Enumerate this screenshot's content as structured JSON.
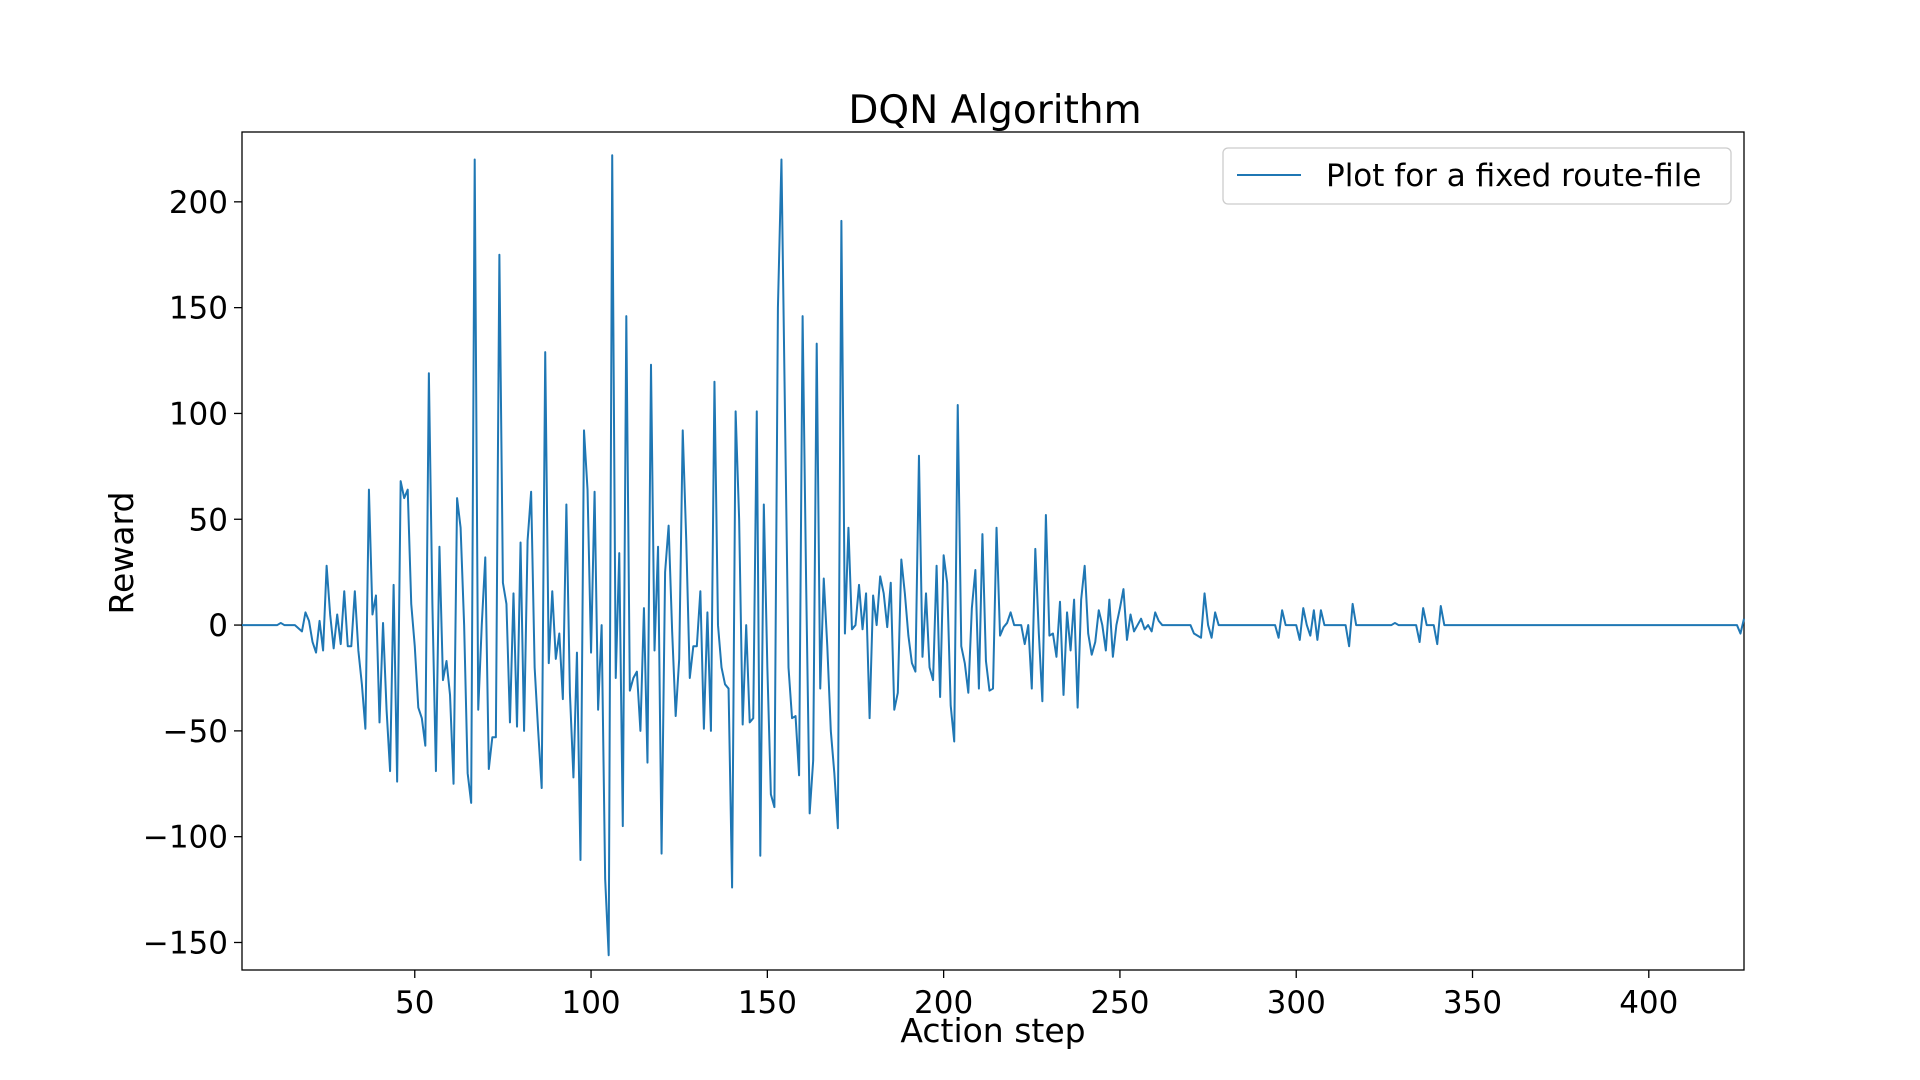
{
  "chart_data": {
    "type": "line",
    "title": "DQN Algorithm",
    "xlabel": "Action step",
    "ylabel": "Reward",
    "xlim": [
      1,
      427
    ],
    "ylim": [
      -163,
      233
    ],
    "xticks": [
      50,
      100,
      150,
      200,
      250,
      300,
      350,
      400
    ],
    "yticks": [
      -150,
      -100,
      -50,
      0,
      50,
      100,
      150,
      200
    ],
    "grid": false,
    "legend_position": "top-right",
    "series_color": "#1f77b4",
    "series": [
      {
        "name": "Plot for a fixed route-file",
        "points": [
          [
            1,
            0
          ],
          [
            11,
            0
          ],
          [
            12,
            1
          ],
          [
            13,
            0
          ],
          [
            16,
            0
          ],
          [
            18,
            -3
          ],
          [
            19,
            6
          ],
          [
            20,
            2
          ],
          [
            21,
            -8
          ],
          [
            22,
            -13
          ],
          [
            23,
            2
          ],
          [
            24,
            -12
          ],
          [
            25,
            28
          ],
          [
            26,
            5
          ],
          [
            27,
            -11
          ],
          [
            28,
            5
          ],
          [
            29,
            -9
          ],
          [
            30,
            16
          ],
          [
            31,
            -10
          ],
          [
            32,
            -10
          ],
          [
            33,
            16
          ],
          [
            34,
            -12
          ],
          [
            35,
            -28
          ],
          [
            36,
            -49
          ],
          [
            37,
            64
          ],
          [
            38,
            5
          ],
          [
            39,
            14
          ],
          [
            40,
            -46
          ],
          [
            41,
            1
          ],
          [
            42,
            -40
          ],
          [
            43,
            -69
          ],
          [
            44,
            19
          ],
          [
            45,
            -74
          ],
          [
            46,
            68
          ],
          [
            47,
            60
          ],
          [
            48,
            64
          ],
          [
            49,
            10
          ],
          [
            50,
            -10
          ],
          [
            51,
            -39
          ],
          [
            52,
            -44
          ],
          [
            53,
            -57
          ],
          [
            54,
            119
          ],
          [
            55,
            10
          ],
          [
            56,
            -69
          ],
          [
            57,
            37
          ],
          [
            58,
            -26
          ],
          [
            59,
            -17
          ],
          [
            60,
            -33
          ],
          [
            61,
            -75
          ],
          [
            62,
            60
          ],
          [
            63,
            46
          ],
          [
            64,
            0
          ],
          [
            65,
            -70
          ],
          [
            66,
            -84
          ],
          [
            67,
            220
          ],
          [
            68,
            -40
          ],
          [
            69,
            0
          ],
          [
            70,
            32
          ],
          [
            71,
            -68
          ],
          [
            72,
            -53
          ],
          [
            73,
            -53
          ],
          [
            74,
            175
          ],
          [
            75,
            20
          ],
          [
            76,
            10
          ],
          [
            77,
            -46
          ],
          [
            78,
            15
          ],
          [
            79,
            -48
          ],
          [
            80,
            39
          ],
          [
            81,
            -50
          ],
          [
            82,
            40
          ],
          [
            83,
            63
          ],
          [
            84,
            -20
          ],
          [
            85,
            -50
          ],
          [
            86,
            -77
          ],
          [
            87,
            129
          ],
          [
            88,
            -18
          ],
          [
            89,
            16
          ],
          [
            90,
            -16
          ],
          [
            91,
            -4
          ],
          [
            92,
            -35
          ],
          [
            93,
            57
          ],
          [
            94,
            -32
          ],
          [
            95,
            -72
          ],
          [
            96,
            -13
          ],
          [
            97,
            -111
          ],
          [
            98,
            92
          ],
          [
            99,
            64
          ],
          [
            100,
            -13
          ],
          [
            101,
            63
          ],
          [
            102,
            -40
          ],
          [
            103,
            0
          ],
          [
            104,
            -120
          ],
          [
            105,
            -156
          ],
          [
            106,
            222
          ],
          [
            107,
            -25
          ],
          [
            108,
            34
          ],
          [
            109,
            -95
          ],
          [
            110,
            146
          ],
          [
            111,
            -31
          ],
          [
            112,
            -25
          ],
          [
            113,
            -22
          ],
          [
            114,
            -50
          ],
          [
            115,
            8
          ],
          [
            116,
            -65
          ],
          [
            117,
            123
          ],
          [
            118,
            -12
          ],
          [
            119,
            37
          ],
          [
            120,
            -108
          ],
          [
            121,
            25
          ],
          [
            122,
            47
          ],
          [
            123,
            -3
          ],
          [
            124,
            -43
          ],
          [
            125,
            -16
          ],
          [
            126,
            92
          ],
          [
            127,
            40
          ],
          [
            128,
            -25
          ],
          [
            129,
            -10
          ],
          [
            130,
            -10
          ],
          [
            131,
            16
          ],
          [
            132,
            -49
          ],
          [
            133,
            6
          ],
          [
            134,
            -50
          ],
          [
            135,
            115
          ],
          [
            136,
            0
          ],
          [
            137,
            -20
          ],
          [
            138,
            -28
          ],
          [
            139,
            -30
          ],
          [
            140,
            -124
          ],
          [
            141,
            101
          ],
          [
            142,
            50
          ],
          [
            143,
            -47
          ],
          [
            144,
            0
          ],
          [
            145,
            -46
          ],
          [
            146,
            -44
          ],
          [
            147,
            101
          ],
          [
            148,
            -109
          ],
          [
            149,
            57
          ],
          [
            150,
            -20
          ],
          [
            151,
            -80
          ],
          [
            152,
            -86
          ],
          [
            153,
            150
          ],
          [
            154,
            220
          ],
          [
            155,
            100
          ],
          [
            156,
            -20
          ],
          [
            157,
            -44
          ],
          [
            158,
            -43
          ],
          [
            159,
            -71
          ],
          [
            160,
            146
          ],
          [
            161,
            20
          ],
          [
            162,
            -89
          ],
          [
            163,
            -64
          ],
          [
            164,
            133
          ],
          [
            165,
            -30
          ],
          [
            166,
            22
          ],
          [
            167,
            -10
          ],
          [
            168,
            -50
          ],
          [
            169,
            -70
          ],
          [
            170,
            -96
          ],
          [
            171,
            191
          ],
          [
            172,
            -4
          ],
          [
            173,
            46
          ],
          [
            174,
            -2
          ],
          [
            175,
            0
          ],
          [
            176,
            19
          ],
          [
            177,
            -2
          ],
          [
            178,
            15
          ],
          [
            179,
            -44
          ],
          [
            180,
            14
          ],
          [
            181,
            0
          ],
          [
            182,
            23
          ],
          [
            183,
            15
          ],
          [
            184,
            -1
          ],
          [
            185,
            20
          ],
          [
            186,
            -40
          ],
          [
            187,
            -32
          ],
          [
            188,
            31
          ],
          [
            189,
            15
          ],
          [
            190,
            -5
          ],
          [
            191,
            -18
          ],
          [
            192,
            -22
          ],
          [
            193,
            80
          ],
          [
            194,
            -15
          ],
          [
            195,
            15
          ],
          [
            196,
            -20
          ],
          [
            197,
            -26
          ],
          [
            198,
            28
          ],
          [
            199,
            -34
          ],
          [
            200,
            33
          ],
          [
            201,
            20
          ],
          [
            202,
            -38
          ],
          [
            203,
            -55
          ],
          [
            204,
            104
          ],
          [
            205,
            -10
          ],
          [
            206,
            -18
          ],
          [
            207,
            -32
          ],
          [
            208,
            8
          ],
          [
            209,
            26
          ],
          [
            210,
            -30
          ],
          [
            211,
            43
          ],
          [
            212,
            -17
          ],
          [
            213,
            -31
          ],
          [
            214,
            -30
          ],
          [
            215,
            46
          ],
          [
            216,
            -5
          ],
          [
            217,
            -1
          ],
          [
            218,
            1
          ],
          [
            219,
            6
          ],
          [
            220,
            0
          ],
          [
            221,
            0
          ],
          [
            222,
            0
          ],
          [
            223,
            -9
          ],
          [
            224,
            0
          ],
          [
            225,
            -30
          ],
          [
            226,
            36
          ],
          [
            227,
            -4
          ],
          [
            228,
            -36
          ],
          [
            229,
            52
          ],
          [
            230,
            -5
          ],
          [
            231,
            -4
          ],
          [
            232,
            -15
          ],
          [
            233,
            11
          ],
          [
            234,
            -33
          ],
          [
            235,
            6
          ],
          [
            236,
            -12
          ],
          [
            237,
            12
          ],
          [
            238,
            -39
          ],
          [
            239,
            12
          ],
          [
            240,
            28
          ],
          [
            241,
            -4
          ],
          [
            242,
            -14
          ],
          [
            243,
            -8
          ],
          [
            244,
            7
          ],
          [
            245,
            0
          ],
          [
            246,
            -12
          ],
          [
            247,
            12
          ],
          [
            248,
            -15
          ],
          [
            249,
            0
          ],
          [
            250,
            8
          ],
          [
            251,
            17
          ],
          [
            252,
            -7
          ],
          [
            253,
            5
          ],
          [
            254,
            -3
          ],
          [
            255,
            0
          ],
          [
            256,
            3
          ],
          [
            257,
            -2
          ],
          [
            258,
            0
          ],
          [
            259,
            -3
          ],
          [
            260,
            6
          ],
          [
            261,
            2
          ],
          [
            262,
            0
          ],
          [
            263,
            0
          ],
          [
            270,
            0
          ],
          [
            271,
            -4
          ],
          [
            272,
            -5
          ],
          [
            273,
            -6
          ],
          [
            274,
            15
          ],
          [
            275,
            0
          ],
          [
            276,
            -6
          ],
          [
            277,
            6
          ],
          [
            278,
            0
          ],
          [
            294,
            0
          ],
          [
            295,
            -6
          ],
          [
            296,
            7
          ],
          [
            297,
            0
          ],
          [
            300,
            0
          ],
          [
            301,
            -7
          ],
          [
            302,
            8
          ],
          [
            303,
            0
          ],
          [
            304,
            -5
          ],
          [
            305,
            7
          ],
          [
            306,
            -7
          ],
          [
            307,
            7
          ],
          [
            308,
            0
          ],
          [
            314,
            0
          ],
          [
            315,
            -10
          ],
          [
            316,
            10
          ],
          [
            317,
            0
          ],
          [
            327,
            0
          ],
          [
            328,
            1
          ],
          [
            329,
            0
          ],
          [
            334,
            0
          ],
          [
            335,
            -8
          ],
          [
            336,
            8
          ],
          [
            337,
            0
          ],
          [
            339,
            0
          ],
          [
            340,
            -9
          ],
          [
            341,
            9
          ],
          [
            342,
            0
          ],
          [
            420,
            0
          ],
          [
            421,
            0
          ],
          [
            422,
            0
          ],
          [
            423,
            0
          ],
          [
            424,
            0
          ],
          [
            425,
            0
          ],
          [
            426,
            -4
          ],
          [
            427,
            3
          ]
        ]
      }
    ]
  }
}
